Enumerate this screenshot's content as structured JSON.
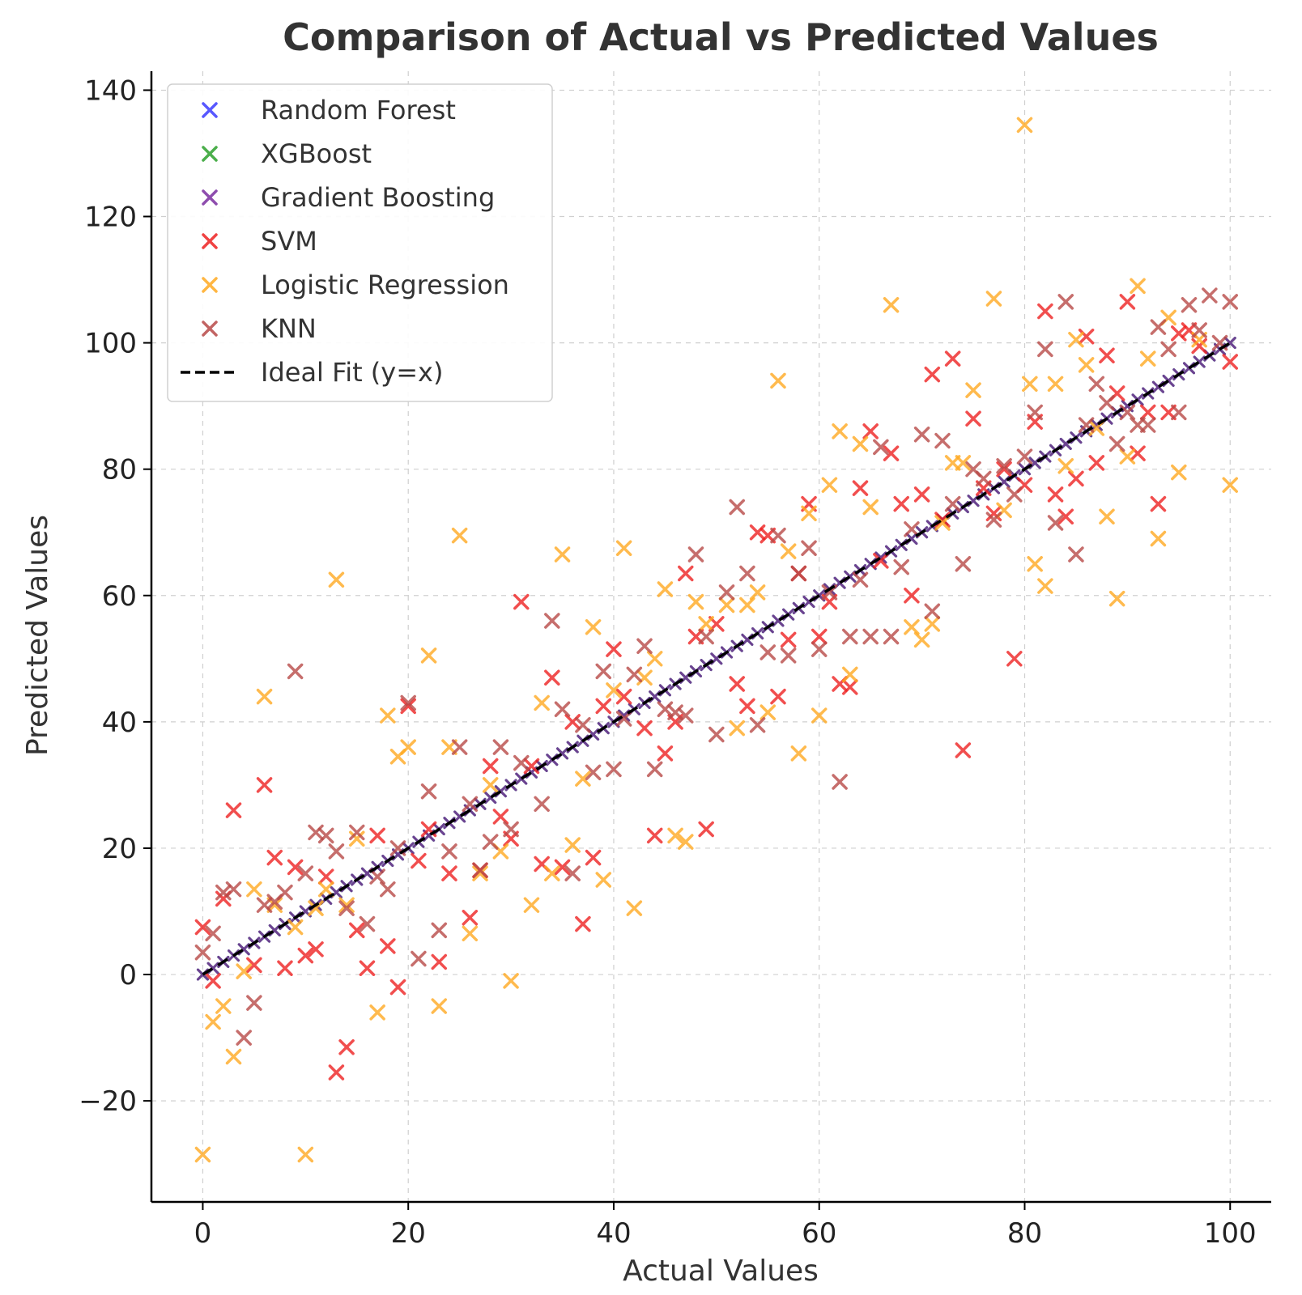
{
  "chart_data": {
    "type": "scatter",
    "title": "Comparison of Actual vs Predicted Values",
    "xlabel": "Actual Values",
    "ylabel": "Predicted Values",
    "xlim": [
      -5,
      104
    ],
    "ylim": [
      -36,
      143
    ],
    "xticks": [
      0,
      20,
      40,
      60,
      80,
      100
    ],
    "yticks": [
      -20,
      0,
      20,
      40,
      60,
      80,
      100,
      120,
      140
    ],
    "grid": true,
    "legend_position": "top-left",
    "ideal_fit": {
      "name": "Ideal Fit (y=x)",
      "color": "#000000",
      "style": "dashed",
      "x": [
        0,
        100
      ],
      "y": [
        0,
        100
      ]
    },
    "series": [
      {
        "name": "Random Forest",
        "color": "#3b3bff",
        "marker": "x",
        "on_diagonal": true,
        "points": []
      },
      {
        "name": "XGBoost",
        "color": "#2ca02c",
        "marker": "x",
        "on_diagonal": true,
        "points": []
      },
      {
        "name": "Gradient Boosting",
        "color": "#7b2fa0",
        "marker": "x",
        "on_diagonal": true,
        "points": []
      },
      {
        "name": "SVM",
        "color": "#ee2222",
        "marker": "x",
        "points": [
          [
            0,
            7.5
          ],
          [
            1,
            -1
          ],
          [
            2,
            12
          ],
          [
            3,
            26
          ],
          [
            5,
            1.5
          ],
          [
            6,
            30
          ],
          [
            7,
            18.5
          ],
          [
            8,
            1
          ],
          [
            9,
            17
          ],
          [
            10,
            3
          ],
          [
            11,
            4
          ],
          [
            12,
            15.5
          ],
          [
            13,
            -15.5
          ],
          [
            14,
            -11.5
          ],
          [
            15,
            7
          ],
          [
            16,
            1
          ],
          [
            17,
            22
          ],
          [
            18,
            4.5
          ],
          [
            19,
            -2
          ],
          [
            20,
            42.5
          ],
          [
            21,
            18
          ],
          [
            22,
            23
          ],
          [
            23,
            2
          ],
          [
            24,
            16
          ],
          [
            26,
            9
          ],
          [
            27,
            16.5
          ],
          [
            28,
            33
          ],
          [
            29,
            25
          ],
          [
            30,
            21.5
          ],
          [
            31,
            59
          ],
          [
            32,
            33
          ],
          [
            33,
            17.5
          ],
          [
            34,
            47
          ],
          [
            35,
            17
          ],
          [
            36,
            40
          ],
          [
            37,
            8
          ],
          [
            38,
            18.5
          ],
          [
            39,
            42.5
          ],
          [
            40,
            51.5
          ],
          [
            41,
            44
          ],
          [
            43,
            39
          ],
          [
            44,
            22
          ],
          [
            45,
            35
          ],
          [
            46,
            40
          ],
          [
            47,
            63.5
          ],
          [
            48,
            53.5
          ],
          [
            49,
            23
          ],
          [
            50,
            55.5
          ],
          [
            52,
            46
          ],
          [
            53,
            42.5
          ],
          [
            54,
            70
          ],
          [
            55,
            69.5
          ],
          [
            56,
            44
          ],
          [
            57,
            53
          ],
          [
            58,
            63.5
          ],
          [
            59,
            74.5
          ],
          [
            60,
            53.5
          ],
          [
            61,
            59
          ],
          [
            62,
            46
          ],
          [
            63,
            45.5
          ],
          [
            64,
            77
          ],
          [
            65,
            86
          ],
          [
            66,
            65.5
          ],
          [
            67,
            82.5
          ],
          [
            68,
            74.5
          ],
          [
            69,
            60
          ],
          [
            70,
            76
          ],
          [
            71,
            95
          ],
          [
            72,
            72
          ],
          [
            73,
            97.5
          ],
          [
            74,
            35.5
          ],
          [
            75,
            88
          ],
          [
            76,
            77
          ],
          [
            77,
            73
          ],
          [
            78,
            80
          ],
          [
            79,
            50
          ],
          [
            80,
            77.5
          ],
          [
            81,
            87.5
          ],
          [
            82,
            105
          ],
          [
            83,
            76
          ],
          [
            84,
            72.5
          ],
          [
            85,
            78.5
          ],
          [
            86,
            101
          ],
          [
            87,
            81
          ],
          [
            88,
            98
          ],
          [
            89,
            92
          ],
          [
            90,
            106.5
          ],
          [
            91,
            82.5
          ],
          [
            92,
            89
          ],
          [
            93,
            74.5
          ],
          [
            94,
            89
          ],
          [
            95,
            101.5
          ],
          [
            96,
            102
          ],
          [
            97,
            99.5
          ],
          [
            100,
            97
          ]
        ]
      },
      {
        "name": "Logistic Regression",
        "color": "#ffaa22",
        "marker": "x",
        "points": [
          [
            0,
            -28.5
          ],
          [
            1,
            -7.5
          ],
          [
            2,
            -5
          ],
          [
            3,
            -13
          ],
          [
            4,
            0.5
          ],
          [
            5,
            13.5
          ],
          [
            6,
            44
          ],
          [
            7,
            11
          ],
          [
            9,
            7.5
          ],
          [
            10,
            -28.5
          ],
          [
            11,
            10.5
          ],
          [
            12,
            13.5
          ],
          [
            13,
            62.5
          ],
          [
            14,
            11
          ],
          [
            15,
            21.5
          ],
          [
            17,
            -6
          ],
          [
            18,
            41
          ],
          [
            19,
            34.5
          ],
          [
            20,
            36
          ],
          [
            22,
            50.5
          ],
          [
            23,
            -5
          ],
          [
            24,
            36
          ],
          [
            25,
            69.5
          ],
          [
            26,
            6.5
          ],
          [
            27,
            16
          ],
          [
            28,
            30
          ],
          [
            29,
            19.5
          ],
          [
            30,
            -1
          ],
          [
            32,
            11
          ],
          [
            33,
            43
          ],
          [
            34,
            16
          ],
          [
            35,
            66.5
          ],
          [
            36,
            20.5
          ],
          [
            37,
            31
          ],
          [
            38,
            55
          ],
          [
            39,
            15
          ],
          [
            40,
            45
          ],
          [
            41,
            67.5
          ],
          [
            42,
            10.5
          ],
          [
            43,
            47
          ],
          [
            44,
            50
          ],
          [
            45,
            61
          ],
          [
            46,
            22
          ],
          [
            47,
            21
          ],
          [
            48,
            59
          ],
          [
            49,
            55.5
          ],
          [
            51,
            58.5
          ],
          [
            52,
            39
          ],
          [
            53,
            58.5
          ],
          [
            54,
            60.5
          ],
          [
            55,
            41.5
          ],
          [
            56,
            94
          ],
          [
            57,
            67
          ],
          [
            58,
            35
          ],
          [
            59,
            73
          ],
          [
            60,
            41
          ],
          [
            61,
            77.5
          ],
          [
            62,
            86
          ],
          [
            63,
            47.5
          ],
          [
            64,
            84
          ],
          [
            65,
            74
          ],
          [
            67,
            106
          ],
          [
            69,
            55
          ],
          [
            70,
            53
          ],
          [
            71,
            55.5
          ],
          [
            72,
            71.5
          ],
          [
            73,
            81
          ],
          [
            74,
            81
          ],
          [
            75,
            92.5
          ],
          [
            77,
            107
          ],
          [
            78,
            73.5
          ],
          [
            80,
            134.5
          ],
          [
            80.5,
            93.5
          ],
          [
            81,
            65
          ],
          [
            82,
            61.5
          ],
          [
            83,
            93.5
          ],
          [
            84,
            80.5
          ],
          [
            85,
            100.5
          ],
          [
            86,
            96.5
          ],
          [
            87,
            86.5
          ],
          [
            88,
            72.5
          ],
          [
            89,
            59.5
          ],
          [
            90,
            82
          ],
          [
            91,
            109
          ],
          [
            92,
            97.5
          ],
          [
            93,
            69
          ],
          [
            94,
            104
          ],
          [
            95,
            79.5
          ],
          [
            97,
            100.5
          ],
          [
            100,
            77.5
          ]
        ]
      },
      {
        "name": "KNN",
        "color": "#b84a48",
        "marker": "x",
        "points": [
          [
            0,
            3.5
          ],
          [
            1,
            6.5
          ],
          [
            2,
            13
          ],
          [
            3,
            13.5
          ],
          [
            4,
            -10
          ],
          [
            5,
            -4.5
          ],
          [
            6,
            11
          ],
          [
            7,
            11.5
          ],
          [
            8,
            13
          ],
          [
            9,
            48
          ],
          [
            10,
            16
          ],
          [
            11,
            22.5
          ],
          [
            12,
            22
          ],
          [
            13,
            19.5
          ],
          [
            14,
            10.5
          ],
          [
            15,
            22.5
          ],
          [
            16,
            8
          ],
          [
            17,
            15.5
          ],
          [
            18,
            13.5
          ],
          [
            19,
            20
          ],
          [
            20,
            43
          ],
          [
            21,
            2.5
          ],
          [
            22,
            29
          ],
          [
            23,
            7
          ],
          [
            24,
            19.5
          ],
          [
            25,
            36
          ],
          [
            26,
            27
          ],
          [
            27,
            16.5
          ],
          [
            28,
            21
          ],
          [
            29,
            36
          ],
          [
            30,
            23
          ],
          [
            31,
            33.5
          ],
          [
            33,
            27
          ],
          [
            34,
            56
          ],
          [
            35,
            42
          ],
          [
            36,
            16
          ],
          [
            37,
            39.5
          ],
          [
            38,
            32
          ],
          [
            39,
            48
          ],
          [
            40,
            32.5
          ],
          [
            41,
            40.5
          ],
          [
            42,
            47.5
          ],
          [
            43,
            52
          ],
          [
            44,
            32.5
          ],
          [
            45,
            42
          ],
          [
            46,
            41.5
          ],
          [
            47,
            41
          ],
          [
            48,
            66.5
          ],
          [
            49,
            53.5
          ],
          [
            50,
            38
          ],
          [
            51,
            60.5
          ],
          [
            52,
            74
          ],
          [
            53,
            63.5
          ],
          [
            54,
            39.5
          ],
          [
            55,
            51
          ],
          [
            56,
            69.5
          ],
          [
            57,
            50.5
          ],
          [
            58,
            63.5
          ],
          [
            59,
            67.5
          ],
          [
            60,
            51.5
          ],
          [
            61,
            60.5
          ],
          [
            62,
            30.5
          ],
          [
            63,
            53.5
          ],
          [
            64,
            62.5
          ],
          [
            65,
            53.5
          ],
          [
            66,
            83.5
          ],
          [
            67,
            53.5
          ],
          [
            68,
            64.5
          ],
          [
            69,
            70.5
          ],
          [
            70,
            85.5
          ],
          [
            71,
            57.5
          ],
          [
            72,
            84.5
          ],
          [
            73,
            74.5
          ],
          [
            74,
            65
          ],
          [
            75,
            80
          ],
          [
            76,
            78.5
          ],
          [
            77,
            72
          ],
          [
            78,
            80.5
          ],
          [
            79,
            76
          ],
          [
            80,
            82
          ],
          [
            81,
            89
          ],
          [
            82,
            99
          ],
          [
            83,
            71.5
          ],
          [
            84,
            106.5
          ],
          [
            85,
            66.5
          ],
          [
            86,
            87
          ],
          [
            87,
            93.5
          ],
          [
            88,
            90.5
          ],
          [
            89,
            84
          ],
          [
            90,
            89
          ],
          [
            91,
            87
          ],
          [
            92,
            87
          ],
          [
            93,
            102.5
          ],
          [
            94,
            99
          ],
          [
            95,
            89
          ],
          [
            96,
            106
          ],
          [
            97,
            102
          ],
          [
            98,
            107.5
          ],
          [
            99,
            100
          ],
          [
            100,
            106.5
          ]
        ]
      }
    ]
  }
}
